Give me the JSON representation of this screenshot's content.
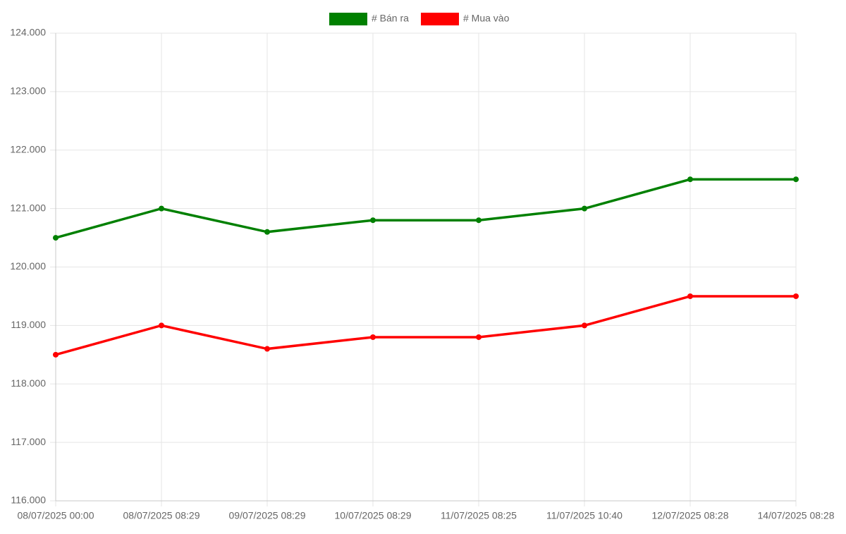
{
  "chart_data": {
    "type": "line",
    "categories": [
      "08/07/2025 00:00",
      "08/07/2025 08:29",
      "09/07/2025 08:29",
      "10/07/2025 08:29",
      "11/07/2025 08:25",
      "11/07/2025 10:40",
      "12/07/2025 08:28",
      "14/07/2025 08:28"
    ],
    "series": [
      {
        "name": "# Bán ra",
        "color": "#008000",
        "values": [
          120500,
          121000,
          120600,
          120800,
          120800,
          121000,
          121500,
          121500
        ]
      },
      {
        "name": "# Mua vào",
        "color": "#ff0000",
        "values": [
          118500,
          119000,
          118600,
          118800,
          118800,
          119000,
          119500,
          119500
        ]
      }
    ],
    "ylim": [
      116000,
      124000
    ],
    "yticks": [
      {
        "value": 116000,
        "label": "116.000"
      },
      {
        "value": 117000,
        "label": "117.000"
      },
      {
        "value": 118000,
        "label": "118.000"
      },
      {
        "value": 119000,
        "label": "119.000"
      },
      {
        "value": 120000,
        "label": "120.000"
      },
      {
        "value": 121000,
        "label": "121.000"
      },
      {
        "value": 122000,
        "label": "122.000"
      },
      {
        "value": 123000,
        "label": "123.000"
      },
      {
        "value": 124000,
        "label": "124.000"
      }
    ],
    "grid": true,
    "legend": "top"
  }
}
